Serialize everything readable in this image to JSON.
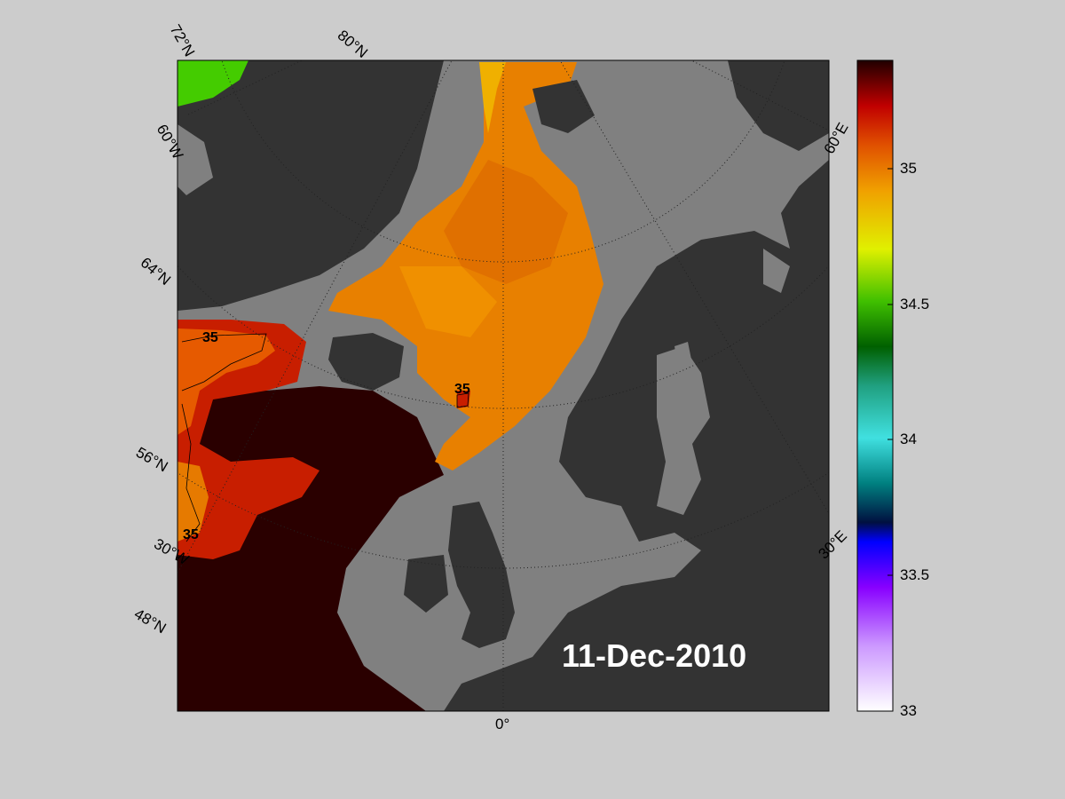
{
  "date_label": "11-Dec-2010",
  "colorbar": {
    "ticks": [
      "33",
      "33.5",
      "34",
      "34.5",
      "35"
    ],
    "min": 33,
    "max": 35.4
  },
  "lat_labels": [
    "72°N",
    "80°N",
    "64°N",
    "56°N",
    "48°N"
  ],
  "lon_labels": [
    "60°W",
    "30°W",
    "0°",
    "30°E",
    "60°E"
  ],
  "contour_labels": [
    "35",
    "35",
    "35"
  ],
  "colors": {
    "background": "#cccccc",
    "sea_nodata": "#808080",
    "land": "#333333",
    "salinity_high": "#2a0000",
    "salinity_mid": "#e07800",
    "salinity_low": "#33cc00"
  }
}
